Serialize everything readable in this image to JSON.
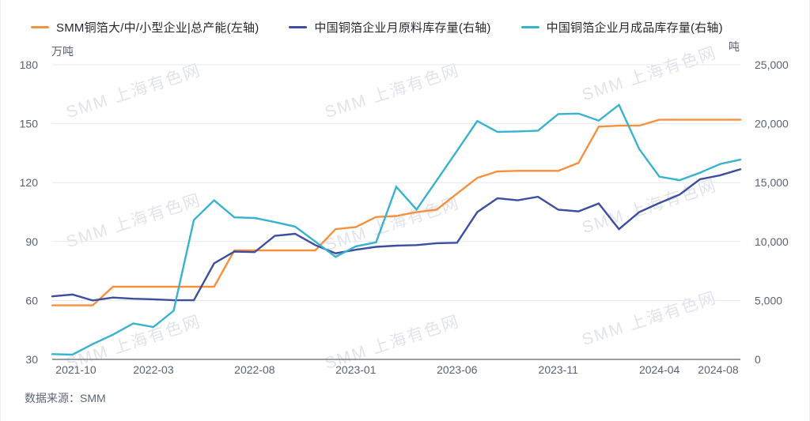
{
  "source": {
    "label": "数据来源：SMM"
  },
  "watermark": {
    "text": "SMM 上海有色网"
  },
  "chart_data": {
    "type": "line",
    "title": "",
    "legend_position": "top",
    "grid": true,
    "categories": [
      "2021-10",
      "2021-11",
      "2021-12",
      "2022-01",
      "2022-02",
      "2022-03",
      "2022-04",
      "2022-05",
      "2022-06",
      "2022-07",
      "2022-08",
      "2022-09",
      "2022-10",
      "2022-11",
      "2022-12",
      "2023-01",
      "2023-02",
      "2023-03",
      "2023-04",
      "2023-05",
      "2023-06",
      "2023-07",
      "2023-08",
      "2023-09",
      "2023-10",
      "2023-11",
      "2023-12",
      "2024-01",
      "2024-02",
      "2024-03",
      "2024-04",
      "2024-05",
      "2024-06",
      "2024-07",
      "2024-08"
    ],
    "x_ticks": [
      "2021-10",
      "2022-03",
      "2022-08",
      "2023-01",
      "2023-06",
      "2023-11",
      "2024-04",
      "2024-08"
    ],
    "left_axis": {
      "unit": "万吨",
      "min": 30,
      "max": 180,
      "ticks": [
        30,
        60,
        90,
        120,
        150,
        180
      ]
    },
    "right_axis": {
      "unit": "吨",
      "min": 0,
      "max": 25000,
      "ticks": [
        0,
        5000,
        10000,
        15000,
        20000,
        25000
      ],
      "tick_labels": [
        "0",
        "5,000",
        "10,000",
        "15,000",
        "20,000",
        "25,000"
      ]
    },
    "series": [
      {
        "name": "SMM铜箔大/中/小型企业|总产能(左轴)",
        "axis": "left",
        "unit": "万吨",
        "color": "#F5913E",
        "values": [
          57.5,
          57.5,
          57.5,
          67,
          67,
          67,
          67,
          67,
          67,
          85.5,
          85.5,
          85.5,
          85.5,
          85.5,
          96.3,
          97.4,
          102.5,
          103,
          105,
          106.3,
          114.4,
          122.4,
          125.7,
          126,
          126,
          126,
          130,
          148.5,
          149,
          149,
          152,
          152,
          152,
          152,
          152
        ]
      },
      {
        "name": "中国铜箔企业月原料库存量(右轴)",
        "axis": "right",
        "unit": "吨",
        "color": "#3D4E9E",
        "values": [
          5350,
          5500,
          5000,
          5250,
          5150,
          5100,
          5020,
          5020,
          8150,
          9150,
          9100,
          10490,
          10660,
          9700,
          9000,
          9300,
          9550,
          9650,
          9700,
          9860,
          9900,
          12500,
          13670,
          13500,
          13800,
          12700,
          12560,
          13230,
          11050,
          12500,
          13270,
          13990,
          15280,
          15620,
          16130
        ]
      },
      {
        "name": "中国铜箔企业月成品库存量(右轴)",
        "axis": "right",
        "unit": "吨",
        "color": "#38B2CE",
        "values": [
          450,
          400,
          1300,
          2100,
          3050,
          2750,
          4130,
          11830,
          13500,
          12050,
          12000,
          11650,
          11265,
          10000,
          8700,
          9590,
          9930,
          14650,
          12715,
          15200,
          17700,
          20230,
          19300,
          19340,
          19410,
          20815,
          20860,
          20260,
          21600,
          17850,
          15500,
          15210,
          15840,
          16580,
          16950
        ]
      }
    ],
    "colors": {
      "grid_line": "#E4E9F3",
      "axis_line": "#5E6575",
      "tick_text": "#5a6270",
      "watermark": "#AAB2C0"
    }
  }
}
